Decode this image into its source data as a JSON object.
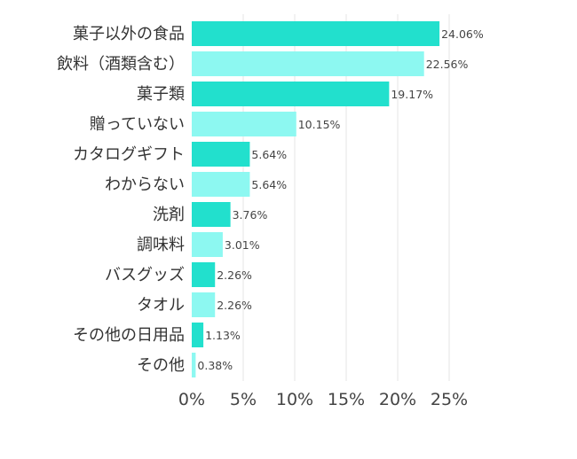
{
  "chart_data": {
    "type": "bar",
    "orientation": "horizontal",
    "title": "",
    "xlabel": "",
    "ylabel": "",
    "categories": [
      "菓子以外の食品",
      "飲料（酒類含む）",
      "菓子類",
      "贈っていない",
      "カタログギフト",
      "わからない",
      "洗剤",
      "調味料",
      "バスグッズ",
      "タオル",
      "その他の日用品",
      "その他"
    ],
    "values": [
      24.06,
      22.56,
      19.17,
      10.15,
      5.64,
      5.64,
      3.76,
      3.01,
      2.26,
      2.26,
      1.13,
      0.38
    ],
    "value_labels": [
      "24.06%",
      "22.56%",
      "19.17%",
      "10.15%",
      "5.64%",
      "5.64%",
      "3.76%",
      "3.01%",
      "2.26%",
      "2.26%",
      "1.13%",
      "0.38%"
    ],
    "xlim": [
      0,
      25
    ],
    "ticks": [
      0,
      5,
      10,
      15,
      20,
      25
    ],
    "tick_labels": [
      "0%",
      "5%",
      "10%",
      "15%",
      "20%",
      "25%"
    ],
    "grid": true,
    "legend": "none",
    "colors": [
      "#22e0cd",
      "#8df8f1"
    ]
  }
}
